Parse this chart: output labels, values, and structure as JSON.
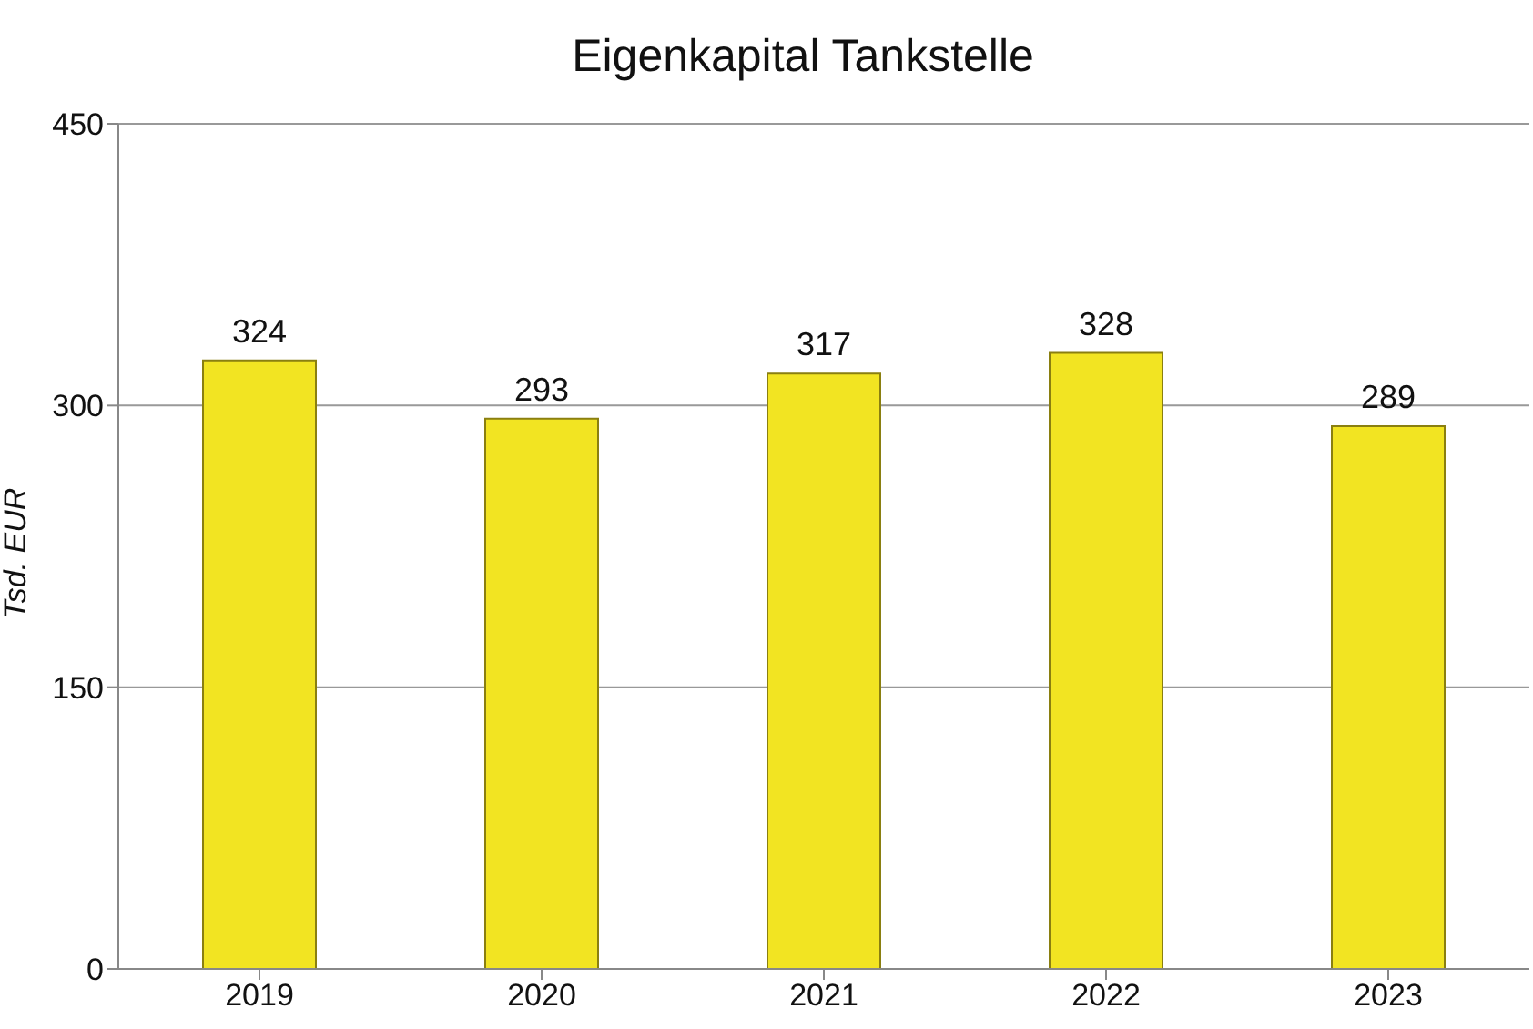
{
  "chart_data": {
    "type": "bar",
    "title": "Eigenkapital Tankstelle",
    "ylabel": "Tsd. EUR",
    "categories": [
      "2019",
      "2020",
      "2021",
      "2022",
      "2023"
    ],
    "values": [
      324,
      293,
      317,
      328,
      289
    ],
    "color": "#f2e422",
    "ylim": [
      0,
      450
    ],
    "yticks": [
      0,
      150,
      300,
      450
    ],
    "grid": "y",
    "data_labels": true
  }
}
